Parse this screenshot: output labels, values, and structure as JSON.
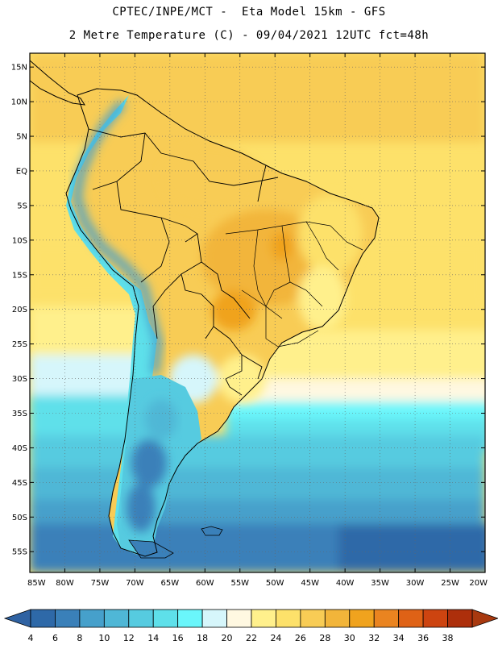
{
  "header": {
    "line1": "CPTEC/INPE/MCT -  Eta Model 15km - GFS",
    "line2": "2 Metre Temperature (C) - 09/04/2021 12UTC fct=48h"
  },
  "map": {
    "lon_range": [
      -85,
      -20
    ],
    "lat_range": [
      -58,
      17
    ],
    "lat_ticks": [
      {
        "value": 15,
        "label": "15N"
      },
      {
        "value": 10,
        "label": "10N"
      },
      {
        "value": 5,
        "label": "5N"
      },
      {
        "value": 0,
        "label": "EQ"
      },
      {
        "value": -5,
        "label": "5S"
      },
      {
        "value": -10,
        "label": "10S"
      },
      {
        "value": -15,
        "label": "15S"
      },
      {
        "value": -20,
        "label": "20S"
      },
      {
        "value": -25,
        "label": "25S"
      },
      {
        "value": -30,
        "label": "30S"
      },
      {
        "value": -35,
        "label": "35S"
      },
      {
        "value": -40,
        "label": "40S"
      },
      {
        "value": -45,
        "label": "45S"
      },
      {
        "value": -50,
        "label": "50S"
      },
      {
        "value": -55,
        "label": "55S"
      }
    ],
    "lon_ticks": [
      {
        "value": -85,
        "label": "85W"
      },
      {
        "value": -80,
        "label": "80W"
      },
      {
        "value": -75,
        "label": "75W"
      },
      {
        "value": -70,
        "label": "70W"
      },
      {
        "value": -65,
        "label": "65W"
      },
      {
        "value": -60,
        "label": "60W"
      },
      {
        "value": -55,
        "label": "55W"
      },
      {
        "value": -50,
        "label": "50W"
      },
      {
        "value": -45,
        "label": "45W"
      },
      {
        "value": -40,
        "label": "40W"
      },
      {
        "value": -35,
        "label": "35W"
      },
      {
        "value": -30,
        "label": "30W"
      },
      {
        "value": -25,
        "label": "25W"
      },
      {
        "value": -20,
        "label": "20W"
      }
    ],
    "grid": "dotted"
  },
  "colorbar": {
    "levels": [
      "4",
      "6",
      "8",
      "10",
      "12",
      "14",
      "16",
      "18",
      "20",
      "22",
      "24",
      "26",
      "28",
      "30",
      "32",
      "34",
      "36",
      "38"
    ],
    "colors": [
      "#2e69a8",
      "#3a80b9",
      "#46a0cb",
      "#4fb7d6",
      "#56cbe0",
      "#5ee0ea",
      "#6af6fb",
      "#d6f6fb",
      "#fff8e1",
      "#fff08c",
      "#fde16a",
      "#f8cc55",
      "#f2b53a",
      "#f0a31e",
      "#ea8420",
      "#df6216",
      "#cd4410",
      "#ad2f0b"
    ],
    "low_color": "#2f62a2",
    "high_color": "#a8390f"
  }
}
